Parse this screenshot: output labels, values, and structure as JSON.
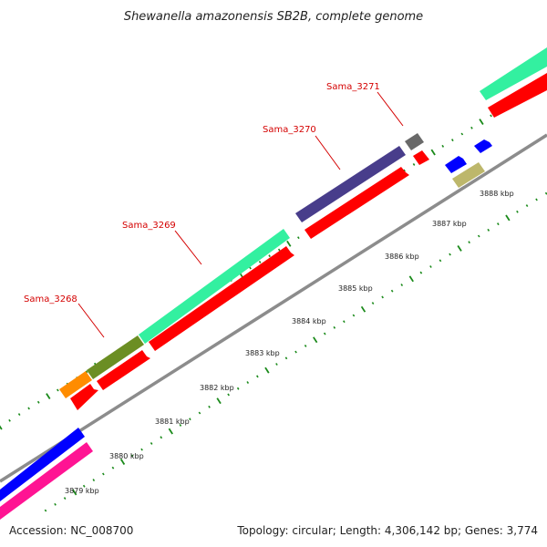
{
  "title": "Shewanella amazonensis SB2B, complete genome",
  "footer": {
    "accession": "Accession: NC_008700",
    "summary": "Topology: circular; Length: 4,306,142 bp; Genes: 3,774"
  },
  "gene_labels": [
    "Sama_3268",
    "Sama_3269",
    "Sama_3270",
    "Sama_3271"
  ],
  "scale_labels": [
    "3879 kbp",
    "3880 kbp",
    "3881 kbp",
    "3882 kbp",
    "3883 kbp",
    "3884 kbp",
    "3885 kbp",
    "3886 kbp",
    "3887 kbp",
    "3888 kbp"
  ],
  "colors": {
    "backbone": "#8c8c8c",
    "tick_green": "#1a8a1a",
    "orange": "#ff8c00",
    "olive": "#6b8e23",
    "mint": "#33f0a0",
    "red": "#ff0000",
    "slate_blue": "#483d8b",
    "gray": "#696969",
    "blue": "#0000ff",
    "khaki": "#bdb76b",
    "pink": "#ff1493"
  }
}
